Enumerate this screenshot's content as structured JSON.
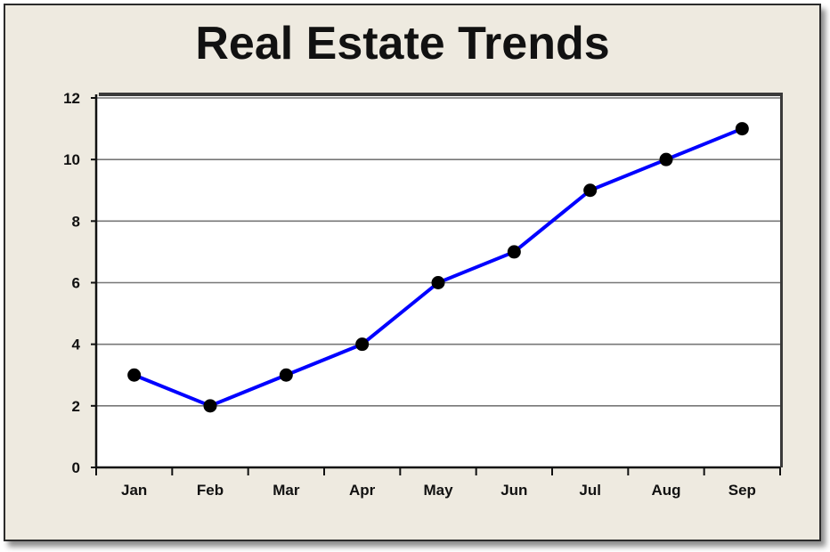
{
  "colors": {
    "background": "#eeeae0",
    "plot_background": "#ffffff",
    "line": "#0000ff",
    "marker": "#000000",
    "grid": "#777777"
  },
  "chart_data": {
    "type": "line",
    "title": "Real Estate Trends",
    "xlabel": "",
    "ylabel": "",
    "categories": [
      "Jan",
      "Feb",
      "Mar",
      "Apr",
      "May",
      "Jun",
      "Jul",
      "Aug",
      "Sep"
    ],
    "series": [
      {
        "values": [
          3,
          2,
          3,
          4,
          6,
          7,
          9,
          10,
          11
        ]
      }
    ],
    "ylim": [
      0,
      12
    ],
    "yticks": [
      "0",
      "2",
      "4",
      "6",
      "8",
      "10",
      "12"
    ],
    "grid": "horizontal",
    "markers": "circle",
    "legend": "none"
  }
}
